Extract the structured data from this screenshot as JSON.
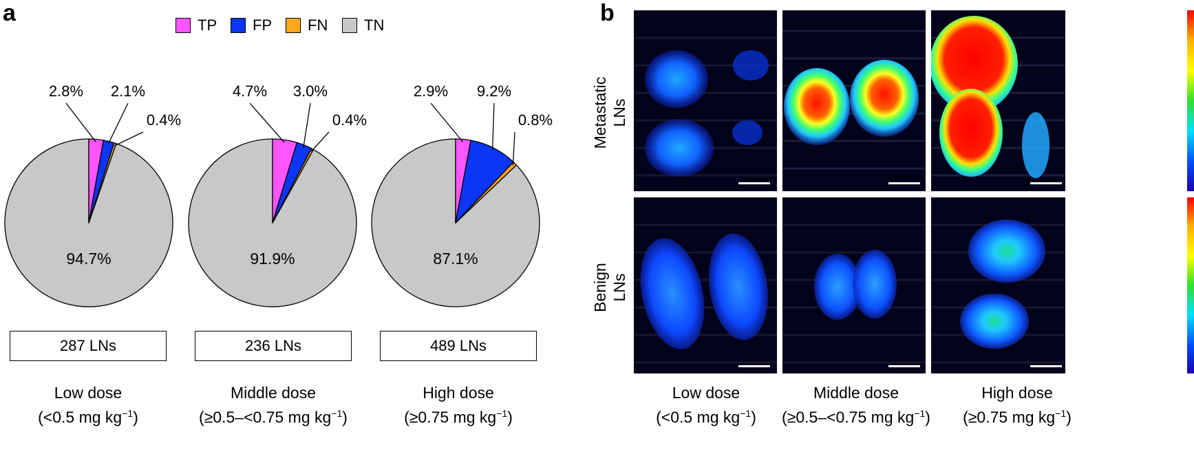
{
  "panels": {
    "a": "a",
    "b": "b"
  },
  "legend": [
    {
      "label": "TP",
      "color": "#ff55ff"
    },
    {
      "label": "FP",
      "color": "#0b36f5"
    },
    {
      "label": "FN",
      "color": "#ffa81f"
    },
    {
      "label": "TN",
      "color": "#c8c8c8"
    }
  ],
  "chart_data": {
    "type": "pie",
    "series_names": [
      "TP",
      "FP",
      "FN",
      "TN"
    ],
    "charts": [
      {
        "slices": [
          2.8,
          2.1,
          0.4,
          94.7
        ],
        "labels": [
          "2.8%",
          "2.1%",
          "0.4%",
          "94.7%"
        ],
        "count": "287 LNs",
        "dose_name": "Low dose",
        "dose_range": "(<0.5 mg kg",
        "dose_sup": "−1",
        "dose_close": ")"
      },
      {
        "slices": [
          4.7,
          3.0,
          0.4,
          91.9
        ],
        "labels": [
          "4.7%",
          "3.0%",
          "0.4%",
          "91.9%"
        ],
        "count": "236 LNs",
        "dose_name": "Middle dose",
        "dose_range": "(≥0.5–<0.75 mg kg",
        "dose_sup": "−1",
        "dose_close": ")"
      },
      {
        "slices": [
          2.9,
          9.2,
          0.8,
          87.1
        ],
        "labels": [
          "2.9%",
          "9.2%",
          "0.8%",
          "87.1%"
        ],
        "count": "489 LNs",
        "dose_name": "High dose",
        "dose_range": "(≥0.75 mg kg",
        "dose_sup": "−1",
        "dose_close": ")"
      }
    ]
  },
  "panel_b": {
    "rows": [
      "Metastatic LNs",
      "Benign LNs"
    ],
    "row_line1": [
      "Metastatic",
      "Benign"
    ],
    "row_line2": [
      "LNs",
      "LNs"
    ],
    "columns": [
      {
        "dose_name": "Low dose",
        "dose_range": "(<0.5 mg kg",
        "dose_sup": "−1",
        "dose_close": ")"
      },
      {
        "dose_name": "Middle dose",
        "dose_range": "(≥0.5–<0.75 mg kg",
        "dose_sup": "−1",
        "dose_close": ")"
      },
      {
        "dose_name": "High dose",
        "dose_range": "(≥0.75 mg kg",
        "dose_sup": "−1",
        "dose_close": ")"
      }
    ]
  }
}
